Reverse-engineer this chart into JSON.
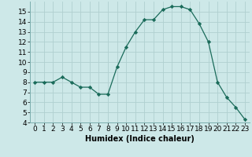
{
  "x": [
    0,
    1,
    2,
    3,
    4,
    5,
    6,
    7,
    8,
    9,
    10,
    11,
    12,
    13,
    14,
    15,
    16,
    17,
    18,
    19,
    20,
    21,
    22,
    23
  ],
  "y": [
    8,
    8,
    8,
    8.5,
    8,
    7.5,
    7.5,
    6.8,
    6.8,
    9.5,
    11.5,
    13,
    14.2,
    14.2,
    15.2,
    15.5,
    15.5,
    15.2,
    13.8,
    12,
    8,
    6.5,
    5.5,
    4.3
  ],
  "line_color": "#1a6b5a",
  "marker": "D",
  "marker_size": 2.2,
  "bg_color": "#cde8e8",
  "grid_color": "#b0d0d0",
  "xlabel": "Humidex (Indice chaleur)",
  "xlim": [
    -0.5,
    23.5
  ],
  "ylim": [
    4,
    16
  ],
  "yticks": [
    4,
    5,
    6,
    7,
    8,
    9,
    10,
    11,
    12,
    13,
    14,
    15
  ],
  "xticks": [
    0,
    1,
    2,
    3,
    4,
    5,
    6,
    7,
    8,
    9,
    10,
    11,
    12,
    13,
    14,
    15,
    16,
    17,
    18,
    19,
    20,
    21,
    22,
    23
  ],
  "xlabel_fontsize": 7,
  "tick_fontsize": 6.5
}
